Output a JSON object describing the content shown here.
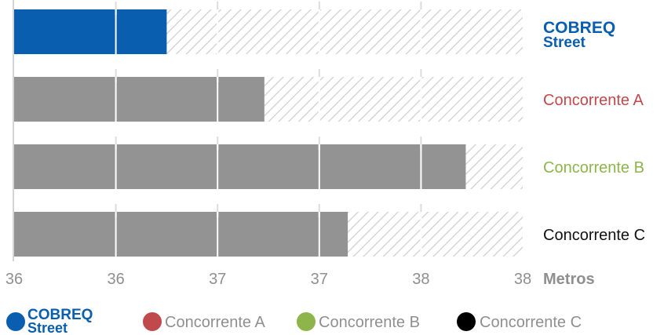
{
  "chart_data": {
    "type": "bar",
    "orientation": "horizontal",
    "unit": "Metros",
    "x_axis_range": [
      35.5,
      38.0
    ],
    "x_ticks": [
      35.5,
      36.0,
      36.5,
      37.0,
      37.5,
      38.0
    ],
    "x_tick_labels": [
      "36",
      "36",
      "37",
      "37",
      "38",
      "38"
    ],
    "categories": [
      {
        "label_line1": "COBREQ",
        "label_line2": "Street",
        "value": 36.25,
        "bar_color": "#0a5eb0",
        "label_color": "#0a5eb0"
      },
      {
        "label": "Concorrente A",
        "value": 36.73,
        "bar_color": "#939393",
        "label_color": "#c0494b"
      },
      {
        "label": "Concorrente B",
        "value": 37.72,
        "bar_color": "#939393",
        "label_color": "#8db54c"
      },
      {
        "label": "Concorrente C",
        "value": 37.14,
        "bar_color": "#939393",
        "label_color": "#111111"
      }
    ],
    "legend": {
      "placement": "bottom",
      "items": [
        {
          "label_line1": "COBREQ",
          "label_line2": "Street",
          "color": "#0a5eb0"
        },
        {
          "label": "Concorrente A",
          "color": "#c0494b"
        },
        {
          "label": "Concorrente B",
          "color": "#8db54c"
        },
        {
          "label": "Concorrente C",
          "color": "#000000"
        }
      ]
    },
    "grid": true,
    "remaining_pattern": "diagonal hatch"
  }
}
